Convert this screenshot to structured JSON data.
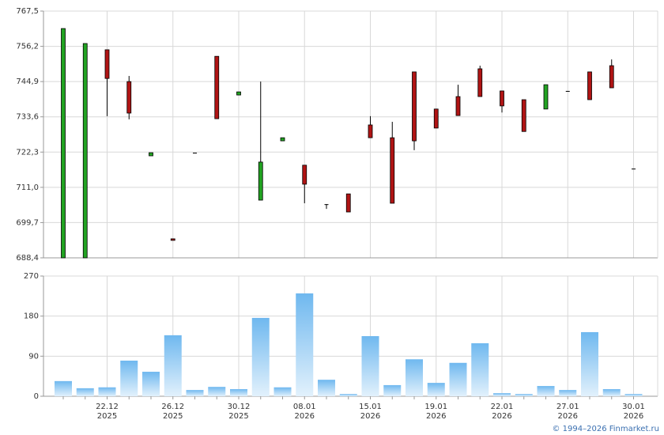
{
  "chart_data": [
    {
      "type": "candlestick",
      "open": [
        688.4,
        688.4,
        755.1,
        744.9,
        721.1,
        694.5,
        722.1,
        753.0,
        740.6,
        706.9,
        725.9,
        718.1,
        705.6,
        708.9,
        731.0,
        726.9,
        748.0,
        736.1,
        740.1,
        749.0,
        741.9,
        739.1,
        736.1,
        741.9,
        748.0,
        750.0,
        717.0
      ],
      "high": [
        761.9,
        757.1,
        755.1,
        746.7,
        722.1,
        694.5,
        722.1,
        753.0,
        741.6,
        744.9,
        726.9,
        718.1,
        705.6,
        708.9,
        733.8,
        732.0,
        748.0,
        736.1,
        743.9,
        750.0,
        741.9,
        739.1,
        743.9,
        741.9,
        748.0,
        752.0,
        717.0
      ],
      "low": [
        688.4,
        688.4,
        733.8,
        732.8,
        721.1,
        694.0,
        722.1,
        733.0,
        740.6,
        706.9,
        725.9,
        705.9,
        704.1,
        703.1,
        726.9,
        705.9,
        722.9,
        730.0,
        734.0,
        740.1,
        735.0,
        728.9,
        736.1,
        741.9,
        739.1,
        742.9,
        717.0
      ],
      "close": [
        761.9,
        757.1,
        745.9,
        734.8,
        722.1,
        694.0,
        722.1,
        733.0,
        741.6,
        719.1,
        726.9,
        712.0,
        705.6,
        703.1,
        726.9,
        705.9,
        725.9,
        730.0,
        734.0,
        740.1,
        737.1,
        728.9,
        743.9,
        741.9,
        739.1,
        742.9,
        717.0
      ],
      "up_color": "#22a322",
      "down_color": "#b01414",
      "ylim": [
        688.4,
        767.5
      ],
      "yticks": [
        {
          "value": 688.4,
          "label": "688,4"
        },
        {
          "value": 699.7,
          "label": "699,7"
        },
        {
          "value": 711.0,
          "label": "711,0"
        },
        {
          "value": 722.3,
          "label": "722,3"
        },
        {
          "value": 733.6,
          "label": "733,6"
        },
        {
          "value": 744.9,
          "label": "744,9"
        },
        {
          "value": 756.2,
          "label": "756,2"
        },
        {
          "value": 767.5,
          "label": "767,5"
        }
      ],
      "grid": true
    },
    {
      "type": "bar",
      "categories": [
        null,
        null,
        "22.12",
        null,
        null,
        "26.12",
        null,
        null,
        "30.12",
        null,
        null,
        "08.01",
        null,
        null,
        "15.01",
        null,
        null,
        "19.01",
        null,
        null,
        "22.01",
        null,
        null,
        "27.01",
        null,
        null,
        "30.01"
      ],
      "category_years": [
        null,
        null,
        "2025",
        null,
        null,
        "2025",
        null,
        null,
        "2025",
        null,
        null,
        "2026",
        null,
        null,
        "2026",
        null,
        null,
        "2026",
        null,
        null,
        "2026",
        null,
        null,
        "2026",
        null,
        null,
        "2026"
      ],
      "values": [
        34,
        18,
        20,
        80,
        55,
        137,
        14,
        21,
        16,
        176,
        20,
        231,
        37,
        5,
        135,
        25,
        83,
        30,
        75,
        119,
        7,
        5,
        23,
        14,
        144,
        16,
        5
      ],
      "color": "#6fb8ef",
      "ylim": [
        0,
        270
      ],
      "yticks": [
        0,
        90,
        180,
        270
      ],
      "grid": true
    }
  ],
  "footer": "© 1994–2026 Finmarket.ru"
}
